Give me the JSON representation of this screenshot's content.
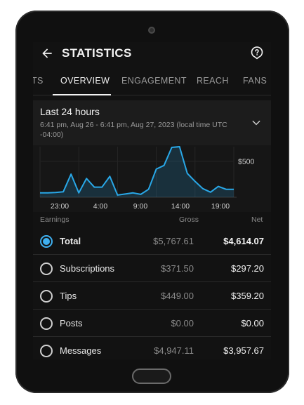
{
  "header": {
    "title": "STATISTICS"
  },
  "tabs": [
    {
      "label": "TS"
    },
    {
      "label": "OVERVIEW"
    },
    {
      "label": "ENGAGEMENT"
    },
    {
      "label": "REACH"
    },
    {
      "label": "FANS"
    }
  ],
  "range": {
    "title": "Last 24 hours",
    "subtitle": "6:41 pm, Aug 26 - 6:41 pm, Aug 27, 2023 (local time UTC -04:00)"
  },
  "chart_data": {
    "type": "area",
    "x_ticks": [
      "23:00",
      "4:00",
      "9:00",
      "14:00",
      "19:00"
    ],
    "y_ticks": [
      "$500"
    ],
    "ylim": [
      0,
      700
    ],
    "color": "#29a8e8",
    "values": [
      60,
      60,
      65,
      75,
      320,
      60,
      260,
      140,
      140,
      290,
      30,
      45,
      60,
      40,
      110,
      390,
      440,
      690,
      700,
      330,
      220,
      120,
      70,
      150,
      110,
      110
    ]
  },
  "columns": {
    "earnings": "Earnings",
    "gross": "Gross",
    "net": "Net"
  },
  "rows": [
    {
      "label": "Total",
      "gross": "$5,767.61",
      "net": "$4,614.07",
      "selected": true
    },
    {
      "label": "Subscriptions",
      "gross": "$371.50",
      "net": "$297.20",
      "selected": false
    },
    {
      "label": "Tips",
      "gross": "$449.00",
      "net": "$359.20",
      "selected": false
    },
    {
      "label": "Posts",
      "gross": "$0.00",
      "net": "$0.00",
      "selected": false
    },
    {
      "label": "Messages",
      "gross": "$4,947.11",
      "net": "$3,957.67",
      "selected": false
    }
  ]
}
